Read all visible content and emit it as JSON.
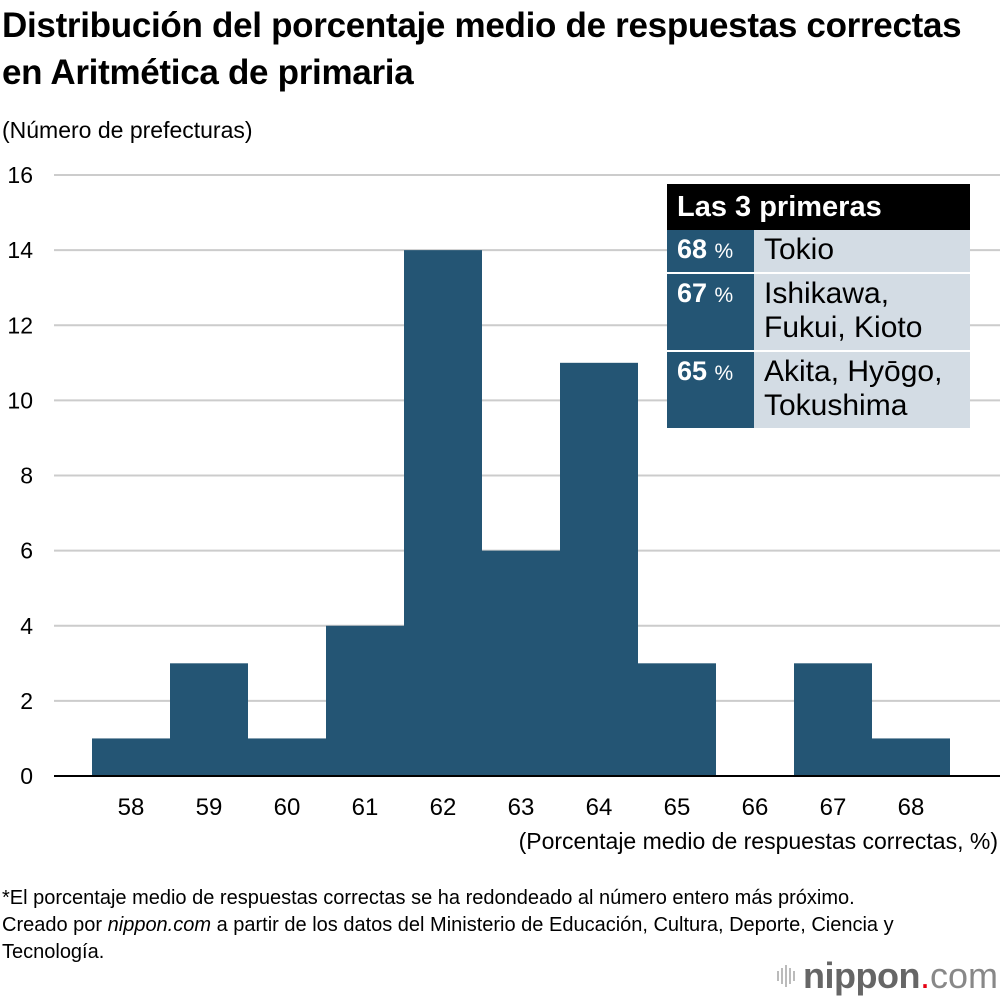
{
  "title": "Distribución del porcentaje medio de respuestas correctas en Aritmética de primaria",
  "colors": {
    "bar": "#245574",
    "grid": "#cccccc",
    "axis": "#000000",
    "legend_pct_bg": "#245574",
    "legend_name_bg": "#d3dce4",
    "legend_head_bg": "#000000",
    "logo_dot": "#e60012"
  },
  "chart_data": {
    "type": "bar",
    "title": "Distribución del porcentaje medio de respuestas correctas en Aritmética de primaria",
    "xlabel": "(Porcentaje medio de respuestas correctas, %)",
    "ylabel": "(Número de prefecturas)",
    "categories": [
      "58",
      "59",
      "60",
      "61",
      "62",
      "63",
      "64",
      "65",
      "66",
      "67",
      "68"
    ],
    "values": [
      1,
      3,
      1,
      4,
      14,
      6,
      11,
      3,
      0,
      3,
      1
    ],
    "ylim": [
      0,
      16
    ],
    "yticks": [
      0,
      2,
      4,
      6,
      8,
      10,
      12,
      14,
      16
    ],
    "grid": true,
    "legend": "none"
  },
  "legend_box": {
    "heading": "Las 3 primeras",
    "unit": "%",
    "rows": [
      {
        "pct": "68",
        "names": "Tokio"
      },
      {
        "pct": "67",
        "names": "Ishikawa,\nFukui, Kioto"
      },
      {
        "pct": "65",
        "names": "Akita, Hyōgo,\nTokushima"
      }
    ]
  },
  "footnote": {
    "note": "*El porcentaje medio de respuestas correctas se ha redondeado al número entero más próximo.",
    "credit_prefix": "Creado por ",
    "credit_site": "nippon.com",
    "credit_suffix": " a partir de los datos del Ministerio de Educación, Cultura, Deporte, Ciencia y Tecnología."
  },
  "logo": {
    "brand": "nippon",
    "dot": ".",
    "tld": "com"
  }
}
